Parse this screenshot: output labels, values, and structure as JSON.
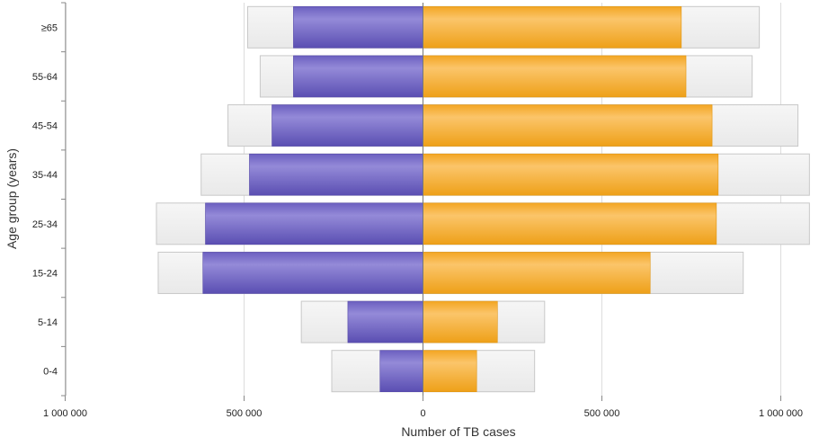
{
  "chart_data": {
    "type": "bar",
    "orientation": "horizontal",
    "layout": "population-pyramid",
    "categories": [
      "0-4",
      "5-14",
      "15-24",
      "25-34",
      "35-44",
      "45-54",
      "55-64",
      "≥65"
    ],
    "series": [
      {
        "side": "left",
        "kind": "background",
        "values": [
          255000,
          340000,
          740000,
          745000,
          620000,
          545000,
          455000,
          490000
        ]
      },
      {
        "side": "left",
        "kind": "foreground",
        "values": [
          120000,
          210000,
          615000,
          608000,
          485000,
          422000,
          362000,
          362000
        ]
      },
      {
        "side": "right",
        "kind": "background",
        "values": [
          312000,
          340000,
          895000,
          1080000,
          1080000,
          1048000,
          920000,
          940000
        ]
      },
      {
        "side": "right",
        "kind": "foreground",
        "values": [
          150000,
          208000,
          635000,
          820000,
          825000,
          808000,
          735000,
          722000
        ]
      }
    ],
    "xlabel": "Number of TB cases",
    "ylabel": "Age group (years)",
    "x_ticks": [
      {
        "value": -1000000,
        "label": "1 000 000"
      },
      {
        "value": -500000,
        "label": "500 000"
      },
      {
        "value": 0,
        "label": "0"
      },
      {
        "value": 500000,
        "label": "500 000"
      },
      {
        "value": 1000000,
        "label": "1 000 000"
      }
    ],
    "xlim": [
      -1000000,
      1100000
    ],
    "grid": true,
    "colors": {
      "left_bar": "#7266c4",
      "right_bar": "#f5ad30",
      "background_bar": "#f0f0f0",
      "background_border": "#c8c8c8",
      "grid": "#dddddd",
      "axis": "#888888"
    }
  }
}
